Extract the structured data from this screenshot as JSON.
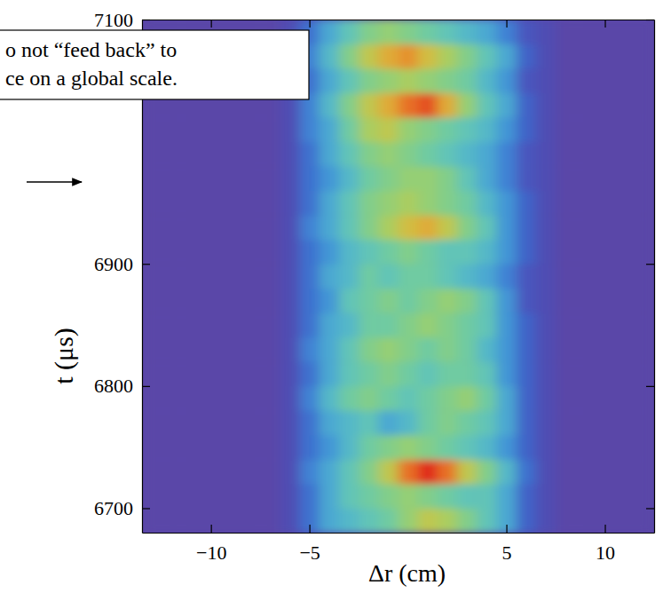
{
  "chart_data": {
    "type": "heatmap",
    "x_label": "Δr (cm)",
    "y_label": "t (μs)",
    "annotations": [
      "o not “feed back” to",
      "ce on a global scale."
    ],
    "xlim": [
      -13.5,
      12.5
    ],
    "ylim": [
      6680,
      7100
    ],
    "xticks": [
      -10,
      -5,
      5,
      10
    ],
    "yticks": [
      6700,
      6800,
      6900,
      7100
    ],
    "zlim": [
      0,
      1
    ],
    "x": [
      -13,
      -12,
      -11,
      -10,
      -9,
      -8,
      -7,
      -6,
      -5,
      -4,
      -3,
      -2,
      -1,
      0,
      1,
      2,
      3,
      4,
      5,
      6,
      7,
      8,
      9,
      10,
      11,
      12
    ],
    "y": [
      6690,
      6710,
      6730,
      6750,
      6770,
      6790,
      6810,
      6830,
      6850,
      6870,
      6890,
      6910,
      6930,
      6950,
      6970,
      6990,
      7010,
      7030,
      7050,
      7070,
      7090
    ],
    "values": [
      [
        0,
        0,
        0,
        0,
        0,
        0,
        0,
        0.05,
        0.2,
        0.35,
        0.4,
        0.45,
        0.5,
        0.6,
        0.7,
        0.65,
        0.55,
        0.45,
        0.35,
        0.15,
        0.05,
        0,
        0,
        0,
        0,
        0
      ],
      [
        0,
        0,
        0,
        0,
        0,
        0,
        0,
        0.05,
        0.2,
        0.35,
        0.45,
        0.5,
        0.55,
        0.6,
        0.55,
        0.5,
        0.45,
        0.45,
        0.35,
        0.15,
        0.05,
        0,
        0,
        0,
        0,
        0
      ],
      [
        0,
        0,
        0,
        0,
        0,
        0,
        0,
        0.05,
        0.25,
        0.35,
        0.45,
        0.55,
        0.7,
        0.9,
        1.0,
        0.9,
        0.7,
        0.55,
        0.4,
        0.2,
        0.05,
        0,
        0,
        0,
        0,
        0
      ],
      [
        0,
        0,
        0,
        0,
        0,
        0,
        0,
        0.05,
        0.2,
        0.3,
        0.4,
        0.5,
        0.55,
        0.6,
        0.55,
        0.5,
        0.45,
        0.4,
        0.3,
        0.15,
        0.05,
        0,
        0,
        0,
        0,
        0
      ],
      [
        0,
        0,
        0,
        0,
        0,
        0,
        0,
        0.05,
        0.2,
        0.35,
        0.4,
        0.45,
        0.35,
        0.4,
        0.5,
        0.55,
        0.5,
        0.45,
        0.35,
        0.15,
        0.05,
        0,
        0,
        0,
        0,
        0
      ],
      [
        0,
        0,
        0,
        0,
        0,
        0,
        0,
        0.05,
        0.25,
        0.4,
        0.5,
        0.55,
        0.5,
        0.45,
        0.5,
        0.55,
        0.6,
        0.5,
        0.35,
        0.15,
        0.05,
        0,
        0,
        0,
        0,
        0
      ],
      [
        0,
        0,
        0,
        0,
        0,
        0,
        0,
        0.05,
        0.2,
        0.35,
        0.45,
        0.5,
        0.55,
        0.5,
        0.45,
        0.5,
        0.5,
        0.45,
        0.3,
        0.15,
        0.05,
        0,
        0,
        0,
        0,
        0
      ],
      [
        0,
        0,
        0,
        0,
        0,
        0,
        0,
        0.05,
        0.25,
        0.35,
        0.45,
        0.55,
        0.6,
        0.55,
        0.5,
        0.55,
        0.5,
        0.4,
        0.3,
        0.15,
        0.05,
        0,
        0,
        0,
        0,
        0
      ],
      [
        0,
        0,
        0,
        0,
        0,
        0,
        0,
        0.05,
        0.2,
        0.35,
        0.4,
        0.5,
        0.5,
        0.55,
        0.6,
        0.55,
        0.5,
        0.45,
        0.3,
        0.15,
        0.05,
        0,
        0,
        0,
        0,
        0
      ],
      [
        0,
        0,
        0,
        0,
        0,
        0,
        0,
        0.05,
        0.2,
        0.3,
        0.45,
        0.5,
        0.55,
        0.5,
        0.55,
        0.6,
        0.55,
        0.45,
        0.3,
        0.1,
        0.05,
        0,
        0,
        0,
        0,
        0
      ],
      [
        0,
        0,
        0,
        0,
        0,
        0,
        0,
        0.05,
        0.2,
        0.35,
        0.4,
        0.5,
        0.45,
        0.5,
        0.5,
        0.45,
        0.4,
        0.35,
        0.25,
        0.1,
        0.05,
        0,
        0,
        0,
        0,
        0
      ],
      [
        0,
        0,
        0,
        0,
        0,
        0,
        0,
        0.05,
        0.2,
        0.3,
        0.4,
        0.45,
        0.5,
        0.55,
        0.5,
        0.45,
        0.45,
        0.4,
        0.3,
        0.15,
        0.05,
        0,
        0,
        0,
        0,
        0
      ],
      [
        0,
        0,
        0,
        0,
        0,
        0,
        0,
        0.05,
        0.25,
        0.35,
        0.45,
        0.55,
        0.65,
        0.75,
        0.8,
        0.7,
        0.55,
        0.45,
        0.3,
        0.15,
        0.05,
        0,
        0,
        0,
        0,
        0
      ],
      [
        0,
        0,
        0,
        0,
        0,
        0,
        0,
        0.05,
        0.2,
        0.35,
        0.45,
        0.55,
        0.6,
        0.65,
        0.6,
        0.55,
        0.5,
        0.4,
        0.3,
        0.15,
        0.05,
        0,
        0,
        0,
        0,
        0
      ],
      [
        0,
        0,
        0,
        0,
        0,
        0,
        0,
        0.05,
        0.2,
        0.3,
        0.4,
        0.5,
        0.55,
        0.6,
        0.6,
        0.55,
        0.45,
        0.35,
        0.25,
        0.1,
        0.05,
        0,
        0,
        0,
        0,
        0
      ],
      [
        0,
        0,
        0,
        0,
        0,
        0,
        0,
        0.05,
        0.2,
        0.35,
        0.45,
        0.55,
        0.6,
        0.55,
        0.5,
        0.45,
        0.4,
        0.35,
        0.25,
        0.1,
        0.05,
        0,
        0,
        0,
        0,
        0
      ],
      [
        0,
        0,
        0,
        0,
        0,
        0,
        0,
        0.05,
        0.25,
        0.35,
        0.5,
        0.65,
        0.7,
        0.6,
        0.55,
        0.5,
        0.45,
        0.4,
        0.3,
        0.15,
        0.05,
        0,
        0,
        0,
        0,
        0
      ],
      [
        0,
        0,
        0,
        0,
        0,
        0,
        0,
        0.05,
        0.25,
        0.4,
        0.55,
        0.7,
        0.8,
        0.9,
        0.95,
        0.8,
        0.6,
        0.45,
        0.35,
        0.15,
        0.05,
        0,
        0,
        0,
        0,
        0
      ],
      [
        0,
        0,
        0,
        0,
        0,
        0,
        0,
        0.05,
        0.2,
        0.35,
        0.45,
        0.55,
        0.6,
        0.65,
        0.6,
        0.55,
        0.5,
        0.4,
        0.3,
        0.1,
        0.05,
        0,
        0,
        0,
        0,
        0
      ],
      [
        0,
        0,
        0,
        0,
        0,
        0,
        0,
        0.05,
        0.25,
        0.4,
        0.55,
        0.7,
        0.8,
        0.85,
        0.75,
        0.65,
        0.55,
        0.45,
        0.35,
        0.15,
        0.05,
        0,
        0,
        0,
        0,
        0
      ],
      [
        0,
        0,
        0,
        0,
        0,
        0,
        0,
        0.05,
        0.2,
        0.35,
        0.45,
        0.55,
        0.6,
        0.55,
        0.5,
        0.45,
        0.4,
        0.35,
        0.25,
        0.1,
        0.05,
        0,
        0,
        0,
        0,
        0
      ]
    ]
  }
}
